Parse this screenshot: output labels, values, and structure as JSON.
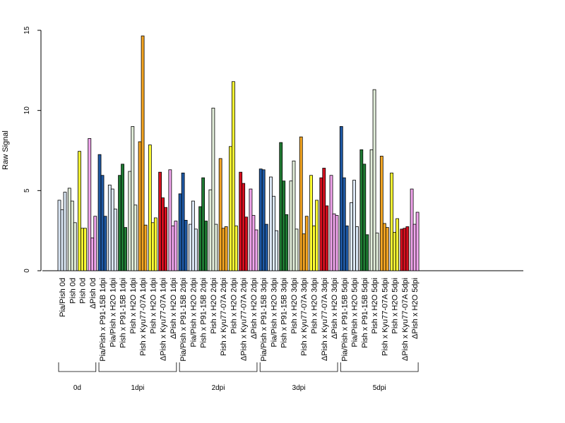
{
  "chart_data": {
    "type": "bar",
    "title": "",
    "xlabel": "",
    "ylabel": "Raw Signal",
    "ylim": [
      0,
      15
    ],
    "yticks": [
      0,
      5,
      10,
      15
    ],
    "grid": false,
    "legend": "none",
    "bar_border_color": "#000000",
    "categories": [
      {
        "label": "Pia/Pish 0d",
        "color": "#dce8f6",
        "values": [
          4.4,
          3.8,
          4.9
        ]
      },
      {
        "label": "Pish 0d",
        "color": "#e4f0dc",
        "values": [
          5.15,
          4.35,
          3.0
        ]
      },
      {
        "label": "Pish 0d",
        "color": "#ffff33",
        "values": [
          7.45,
          2.65,
          2.65
        ]
      },
      {
        "label": "ΔPish 0d",
        "color": "#f2a6ee",
        "values": [
          8.25,
          2.05,
          3.4
        ]
      },
      {
        "label": "Pia/Pish x P91-15B 1dpi",
        "color": "#1f5aa6",
        "values": [
          7.25,
          5.95,
          3.4
        ]
      },
      {
        "label": "Pia/Pish x H2O 1dpi",
        "color": "#dce8f6",
        "values": [
          5.35,
          5.1,
          3.85
        ]
      },
      {
        "label": "Pish x P91-15B 1dpi",
        "color": "#1f7a33",
        "values": [
          5.95,
          6.65,
          2.7
        ]
      },
      {
        "label": "Pish x H2O 1dpi",
        "color": "#e4f0dc",
        "values": [
          6.2,
          9.0,
          4.1
        ]
      },
      {
        "label": "Pish x Kyu77-07A 1dpi",
        "color": "#f5a623",
        "values": [
          8.05,
          14.65,
          2.85
        ]
      },
      {
        "label": "Pish x H2O 1dpi",
        "color": "#ffff33",
        "values": [
          7.85,
          3.0,
          3.3
        ]
      },
      {
        "label": "ΔPish x Kyu77-07A 1dpi",
        "color": "#d7101f",
        "values": [
          6.15,
          4.55,
          3.95
        ]
      },
      {
        "label": "ΔPish x H2O 1dpi",
        "color": "#f2a6ee",
        "values": [
          6.3,
          2.8,
          3.1
        ]
      },
      {
        "label": "Pia/Pish x P91-15B 2dpi",
        "color": "#1f5aa6",
        "values": [
          4.8,
          6.1,
          3.15
        ]
      },
      {
        "label": "Pia/Pish x H2O 2dpi",
        "color": "#dce8f6",
        "values": [
          2.9,
          4.35,
          2.6
        ]
      },
      {
        "label": "Pish x P91-15B 2dpi",
        "color": "#1f7a33",
        "values": [
          4.0,
          5.8,
          3.1
        ]
      },
      {
        "label": "Pish x H2O 2dpi",
        "color": "#e4f0dc",
        "values": [
          5.05,
          10.15,
          2.9
        ]
      },
      {
        "label": "Pish x Kyu77-07A 2dpi",
        "color": "#f5a623",
        "values": [
          7.0,
          2.65,
          2.75
        ]
      },
      {
        "label": "Pish x H2O 2dpi",
        "color": "#ffff33",
        "values": [
          7.75,
          11.8,
          2.8
        ]
      },
      {
        "label": "ΔPish x Kyu77-07A 2dpi",
        "color": "#d7101f",
        "values": [
          6.15,
          5.45,
          3.35
        ]
      },
      {
        "label": "ΔPish x H2O 2dpi",
        "color": "#f2a6ee",
        "values": [
          5.1,
          3.45,
          2.55
        ]
      },
      {
        "label": "Pia/Pish x P91-15B 3dpi",
        "color": "#1f5aa6",
        "values": [
          6.35,
          6.3,
          2.9
        ]
      },
      {
        "label": "Pia/Pish x H2O 3dpi",
        "color": "#dce8f6",
        "values": [
          5.85,
          4.65,
          2.5
        ]
      },
      {
        "label": "Pish x P91-15B 3dpi",
        "color": "#1f7a33",
        "values": [
          8.0,
          5.6,
          3.5
        ]
      },
      {
        "label": "Pish x H2O 3dpi",
        "color": "#e4f0dc",
        "values": [
          5.6,
          6.85,
          2.6
        ]
      },
      {
        "label": "Pish x Kyu77-07A 3dpi",
        "color": "#f5a623",
        "values": [
          8.35,
          2.3,
          3.4
        ]
      },
      {
        "label": "Pish x H2O 3dpi",
        "color": "#ffff33",
        "values": [
          5.95,
          2.8,
          4.4
        ]
      },
      {
        "label": "ΔPish x Kyu77-07A 3dpi",
        "color": "#d7101f",
        "values": [
          5.8,
          6.4,
          4.05
        ]
      },
      {
        "label": "ΔPish x H2O 3dpi",
        "color": "#f2a6ee",
        "values": [
          5.95,
          3.55,
          3.45
        ]
      },
      {
        "label": "Pia/Pish x P91-15B 5dpi",
        "color": "#1f5aa6",
        "values": [
          9.0,
          5.8,
          2.8
        ]
      },
      {
        "label": "Pia/Pish x H2O 5dpi",
        "color": "#dce8f6",
        "values": [
          4.25,
          5.65,
          2.75
        ]
      },
      {
        "label": "Pish x P91-15B 5dpi",
        "color": "#1f7a33",
        "values": [
          7.55,
          6.65,
          2.25
        ]
      },
      {
        "label": "Pish x H2O 5dpi",
        "color": "#e4f0dc",
        "values": [
          7.55,
          11.3,
          2.35
        ]
      },
      {
        "label": "Pish x Kyu77-07A 5dpi",
        "color": "#f5a623",
        "values": [
          7.15,
          2.95,
          2.7
        ]
      },
      {
        "label": "Pish x H2O 5dpi",
        "color": "#ffff33",
        "values": [
          6.1,
          2.4,
          3.25
        ]
      },
      {
        "label": "ΔPish x Kyu77-07A 5dpi",
        "color": "#d7101f",
        "values": [
          2.6,
          2.65,
          2.75
        ]
      },
      {
        "label": "ΔPish x H2O 5dpi",
        "color": "#f2a6ee",
        "values": [
          5.1,
          2.9,
          3.65
        ]
      }
    ],
    "groups": [
      {
        "label": "0d",
        "start": 0,
        "end": 3
      },
      {
        "label": "1dpi",
        "start": 4,
        "end": 11
      },
      {
        "label": "2dpi",
        "start": 12,
        "end": 19
      },
      {
        "label": "3dpi",
        "start": 20,
        "end": 27
      },
      {
        "label": "5dpi",
        "start": 28,
        "end": 35
      }
    ]
  }
}
